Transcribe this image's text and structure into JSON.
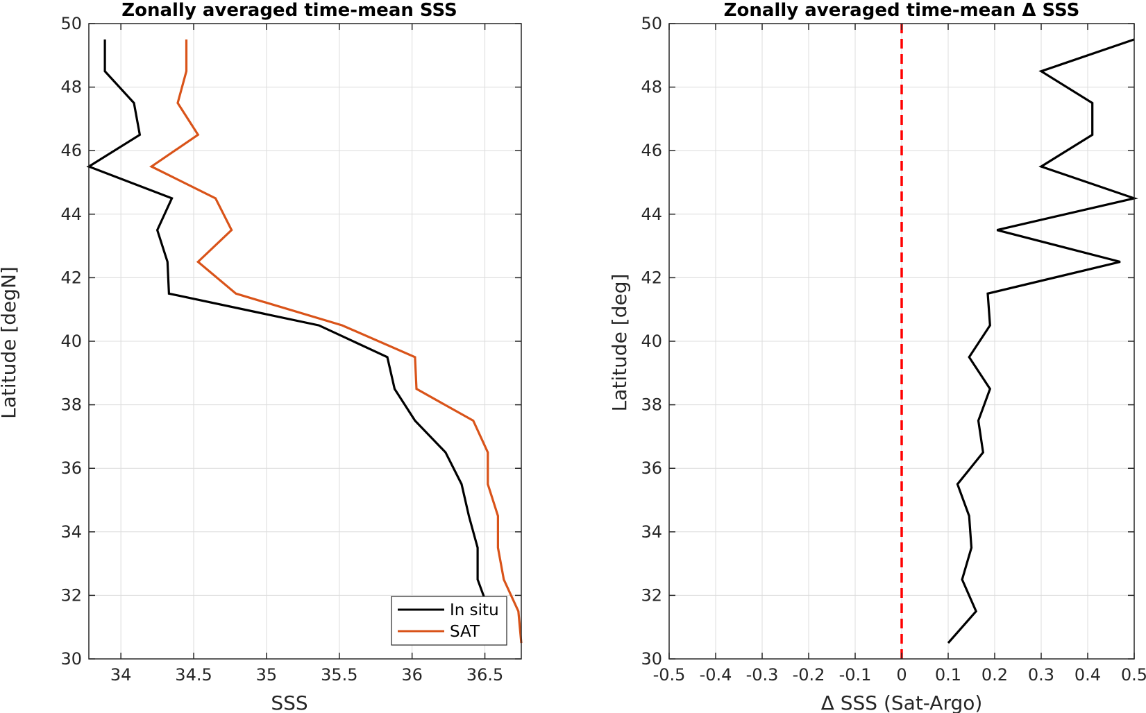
{
  "chart_data": [
    {
      "type": "line",
      "title": "Zonally averaged time-mean SSS",
      "xlabel": "SSS",
      "ylabel": "Latitude [degN]",
      "xlim": [
        33.78,
        36.75
      ],
      "ylim": [
        30,
        50
      ],
      "xticks": [
        34,
        34.5,
        35,
        35.5,
        36,
        36.5
      ],
      "xtick_labels": [
        "34",
        "34.5",
        "35",
        "35.5",
        "36",
        "36.5"
      ],
      "yticks": [
        30,
        32,
        34,
        36,
        38,
        40,
        42,
        44,
        46,
        48,
        50
      ],
      "ytick_labels": [
        "30",
        "32",
        "34",
        "36",
        "38",
        "40",
        "42",
        "44",
        "46",
        "48",
        "50"
      ],
      "grid": true,
      "legend_position": "bottom-right",
      "series": [
        {
          "name": "In situ",
          "color": "#000000",
          "points": [
            [
              36.53,
              31.5
            ],
            [
              36.45,
              32.5
            ],
            [
              36.45,
              33.5
            ],
            [
              36.39,
              34.5
            ],
            [
              36.34,
              35.5
            ],
            [
              36.23,
              36.5
            ],
            [
              36.02,
              37.5
            ],
            [
              35.88,
              38.5
            ],
            [
              35.83,
              39.5
            ],
            [
              35.36,
              40.5
            ],
            [
              34.33,
              41.5
            ],
            [
              34.32,
              42.5
            ],
            [
              34.25,
              43.5
            ],
            [
              34.35,
              44.5
            ],
            [
              33.78,
              45.5
            ],
            [
              34.13,
              46.5
            ],
            [
              34.09,
              47.5
            ],
            [
              33.89,
              48.5
            ],
            [
              33.89,
              49.5
            ]
          ]
        },
        {
          "name": "SAT",
          "color": "#d95319",
          "points": [
            [
              36.75,
              30.5
            ],
            [
              36.73,
              31.5
            ],
            [
              36.63,
              32.5
            ],
            [
              36.59,
              33.5
            ],
            [
              36.59,
              34.5
            ],
            [
              36.52,
              35.5
            ],
            [
              36.52,
              36.5
            ],
            [
              36.42,
              37.5
            ],
            [
              36.03,
              38.5
            ],
            [
              36.02,
              39.5
            ],
            [
              35.52,
              40.5
            ],
            [
              34.79,
              41.5
            ],
            [
              34.53,
              42.5
            ],
            [
              34.76,
              43.5
            ],
            [
              34.65,
              44.5
            ],
            [
              34.21,
              45.5
            ],
            [
              34.53,
              46.5
            ],
            [
              34.39,
              47.5
            ],
            [
              34.45,
              48.5
            ],
            [
              34.45,
              49.5
            ]
          ]
        }
      ]
    },
    {
      "type": "line",
      "title": "Zonally averaged time-mean Δ SSS",
      "xlabel": "Δ SSS (Sat-Argo)",
      "ylabel": "Latitude [deg]",
      "xlim": [
        -0.5,
        0.5
      ],
      "ylim": [
        30,
        50
      ],
      "xticks": [
        -0.5,
        -0.4,
        -0.3,
        -0.2,
        -0.1,
        0,
        0.1,
        0.2,
        0.3,
        0.4,
        0.5
      ],
      "xtick_labels": [
        "-0.5",
        "-0.4",
        "-0.3",
        "-0.2",
        "-0.1",
        "0",
        "0.1",
        "0.2",
        "0.3",
        "0.4",
        "0.5"
      ],
      "yticks": [
        30,
        32,
        34,
        36,
        38,
        40,
        42,
        44,
        46,
        48,
        50
      ],
      "ytick_labels": [
        "30",
        "32",
        "34",
        "36",
        "38",
        "40",
        "42",
        "44",
        "46",
        "48",
        "50"
      ],
      "grid": true,
      "reference_line": {
        "x": 0,
        "color": "#ff0000",
        "style": "dashed"
      },
      "series": [
        {
          "color": "#000000",
          "points": [
            [
              0.1,
              30.5
            ],
            [
              0.16,
              31.5
            ],
            [
              0.13,
              32.5
            ],
            [
              0.15,
              33.5
            ],
            [
              0.145,
              34.5
            ],
            [
              0.12,
              35.5
            ],
            [
              0.175,
              36.5
            ],
            [
              0.165,
              37.5
            ],
            [
              0.19,
              38.5
            ],
            [
              0.145,
              39.5
            ],
            [
              0.19,
              40.5
            ],
            [
              0.185,
              41.5
            ],
            [
              0.47,
              42.5
            ],
            [
              0.205,
              43.5
            ],
            [
              0.5,
              44.5
            ],
            [
              0.3,
              45.5
            ],
            [
              0.41,
              46.5
            ],
            [
              0.41,
              47.5
            ],
            [
              0.3,
              48.5
            ],
            [
              0.5,
              49.5
            ]
          ]
        }
      ]
    }
  ]
}
